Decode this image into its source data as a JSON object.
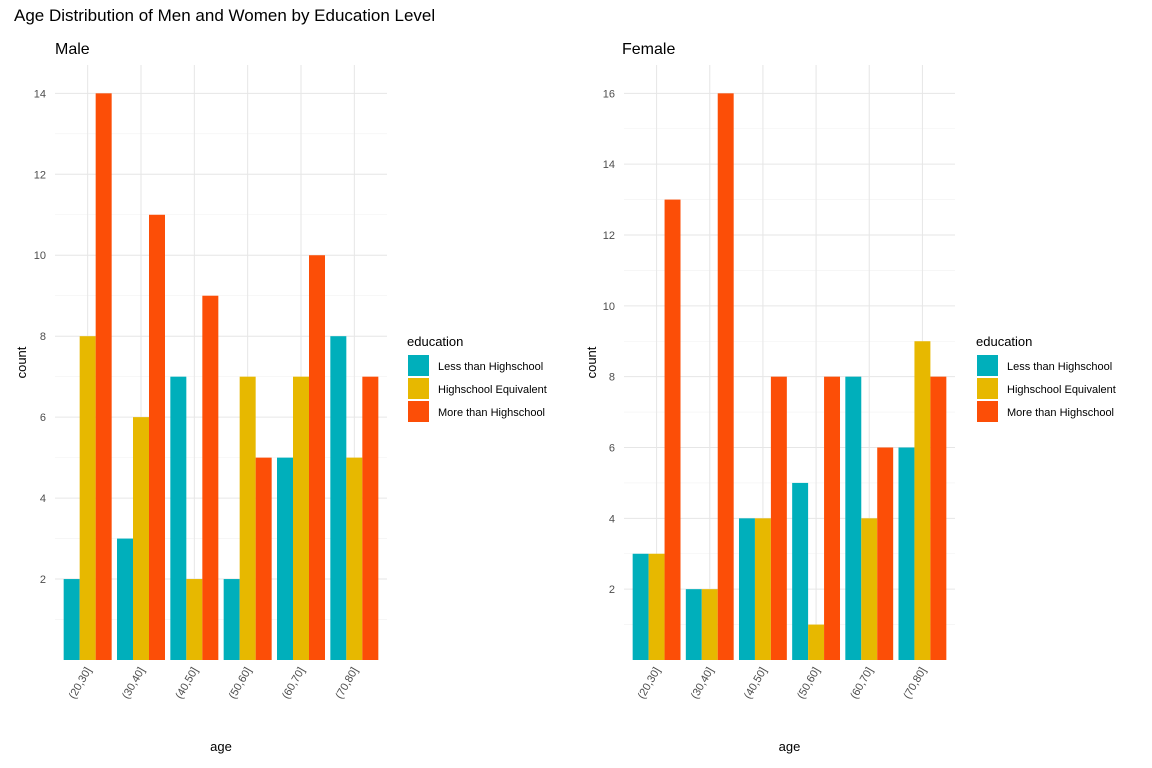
{
  "title": "Age Distribution of Men and Women by Education Level",
  "colors": {
    "Less than Highschool": "#00AFBB",
    "Highschool Equivalent": "#E7B800",
    "More than Highschool": "#FC4E07"
  },
  "chart_data": [
    {
      "type": "bar",
      "title": "Male",
      "xlabel": "age",
      "ylabel": "count",
      "categories": [
        "(20,30]",
        "(30,40]",
        "(40,50]",
        "(50,60]",
        "(60,70]",
        "(70,80]"
      ],
      "ylim": [
        0,
        14.7
      ],
      "yticks": [
        2,
        4,
        6,
        8,
        10,
        12,
        14
      ],
      "legend_title": "education",
      "legend_position": "right",
      "grid": true,
      "series": [
        {
          "name": "Less than Highschool",
          "values": [
            2,
            3,
            7,
            2,
            5,
            8
          ]
        },
        {
          "name": "Highschool Equivalent",
          "values": [
            8,
            6,
            2,
            7,
            7,
            5
          ]
        },
        {
          "name": "More than Highschool",
          "values": [
            14,
            11,
            9,
            5,
            10,
            7
          ]
        }
      ]
    },
    {
      "type": "bar",
      "title": "Female",
      "xlabel": "age",
      "ylabel": "count",
      "categories": [
        "(20,30]",
        "(30,40]",
        "(40,50]",
        "(50,60]",
        "(60,70]",
        "(70,80]"
      ],
      "ylim": [
        0,
        16.8
      ],
      "yticks": [
        2,
        4,
        6,
        8,
        10,
        12,
        14,
        16
      ],
      "legend_title": "education",
      "legend_position": "right",
      "grid": true,
      "series": [
        {
          "name": "Less than Highschool",
          "values": [
            3,
            2,
            4,
            5,
            8,
            6
          ]
        },
        {
          "name": "Highschool Equivalent",
          "values": [
            3,
            2,
            4,
            1,
            4,
            9
          ]
        },
        {
          "name": "More than Highschool",
          "values": [
            13,
            16,
            8,
            8,
            6,
            8
          ]
        }
      ]
    }
  ]
}
